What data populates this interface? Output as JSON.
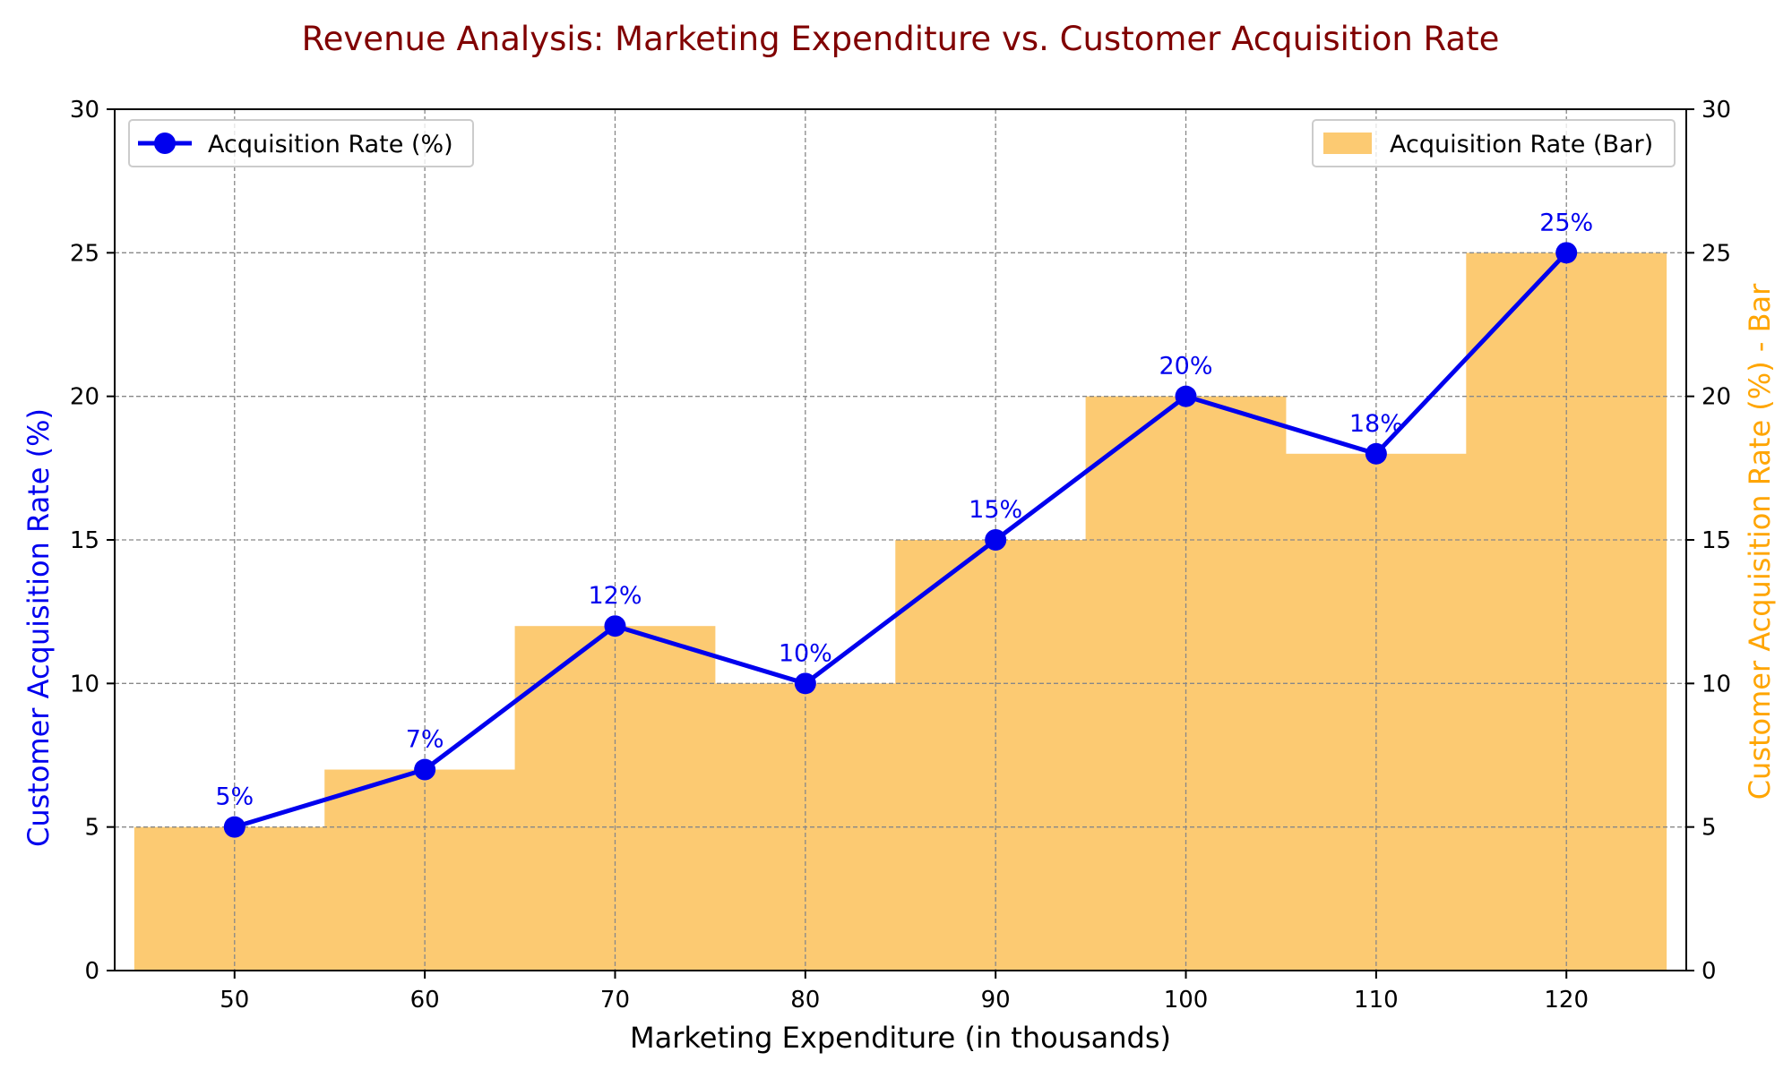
{
  "chart_data": {
    "type": "bar+line",
    "title": "Revenue Analysis: Marketing Expenditure vs. Customer Acquisition Rate",
    "xlabel": "Marketing Expenditure (in thousands)",
    "ylabel_left": "Customer Acquisition Rate (%)",
    "ylabel_right": "Customer Acquisition Rate (%) - Bar",
    "categories": [
      "50",
      "60",
      "70",
      "80",
      "90",
      "100",
      "110",
      "120"
    ],
    "x": [
      50,
      60,
      70,
      80,
      90,
      100,
      110,
      120
    ],
    "ylim": [
      0,
      30
    ],
    "yticks": [
      0,
      5,
      10,
      15,
      20,
      25,
      30
    ],
    "grid": true,
    "series": [
      {
        "name": "Acquisition Rate (%)",
        "type": "line",
        "axis": "left",
        "color": "#0000ee",
        "values": [
          5,
          7,
          12,
          10,
          15,
          20,
          18,
          25
        ],
        "labels": [
          "5%",
          "7%",
          "12%",
          "10%",
          "15%",
          "20%",
          "18%",
          "25%"
        ]
      },
      {
        "name": "Acquisition Rate (Bar)",
        "type": "bar",
        "axis": "right",
        "color": "#fcca72",
        "values": [
          5,
          7,
          12,
          10,
          15,
          20,
          18,
          25
        ]
      }
    ],
    "legends": [
      {
        "series": "Acquisition Rate (%)",
        "placement": "top-left"
      },
      {
        "series": "Acquisition Rate (Bar)",
        "placement": "top-right"
      }
    ],
    "colors": {
      "title": "#800000",
      "left_axis_label": "#0000ee",
      "right_axis_label": "#ffa500",
      "grid": "#888888"
    }
  }
}
